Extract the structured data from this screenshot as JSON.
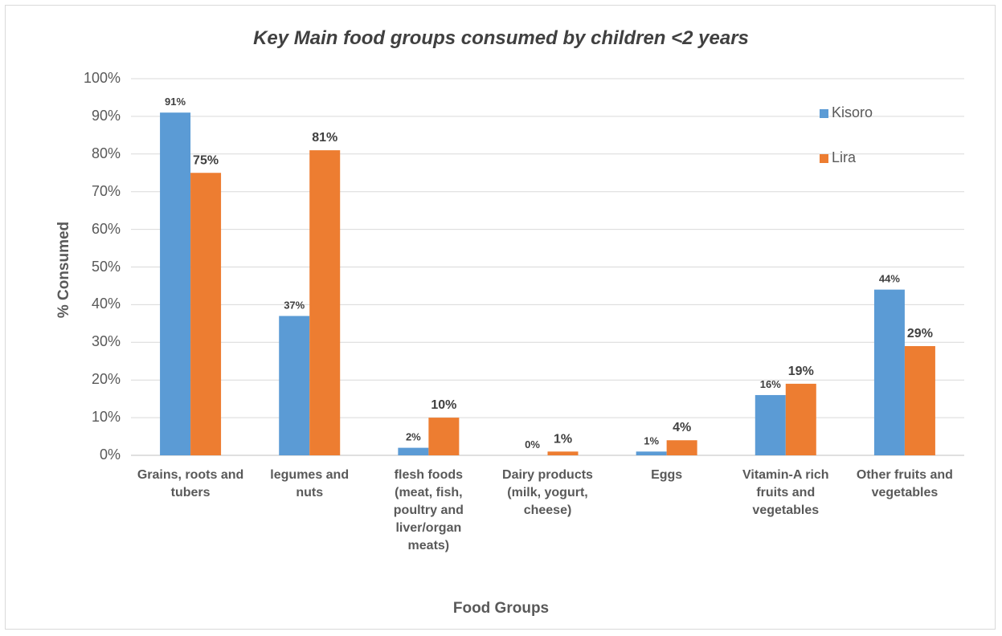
{
  "chart_data": {
    "type": "bar",
    "title": "Key Main food groups consumed by children <2 years",
    "xlabel": "Food Groups",
    "ylabel": "% Consumed",
    "ylim": [
      0,
      100
    ],
    "yticks": [
      "0%",
      "10%",
      "20%",
      "30%",
      "40%",
      "50%",
      "60%",
      "70%",
      "80%",
      "90%",
      "100%"
    ],
    "grid": true,
    "legend_position": "top-right",
    "categories": [
      [
        "Grains, roots and",
        "tubers"
      ],
      [
        "legumes and",
        "nuts"
      ],
      [
        "flesh foods",
        "(meat, fish,",
        "poultry and",
        "liver/organ",
        "meats)"
      ],
      [
        "Dairy products",
        "(milk, yogurt,",
        "cheese)"
      ],
      [
        "Eggs"
      ],
      [
        "Vitamin-A rich",
        "fruits and",
        "vegetables"
      ],
      [
        "Other fruits and",
        "vegetables"
      ]
    ],
    "series": [
      {
        "name": "Kisoro",
        "color": "#5b9bd5",
        "values": [
          91,
          37,
          2,
          0,
          1,
          16,
          44
        ],
        "labels": [
          "91%",
          "37%",
          "2%",
          "0%",
          "1%",
          "16%",
          "44%"
        ]
      },
      {
        "name": "Lira",
        "color": "#ed7d31",
        "values": [
          75,
          81,
          10,
          1,
          4,
          19,
          29
        ],
        "labels": [
          "75%",
          "81%",
          "10%",
          "1%",
          "4%",
          "19%",
          "29%"
        ]
      }
    ]
  }
}
